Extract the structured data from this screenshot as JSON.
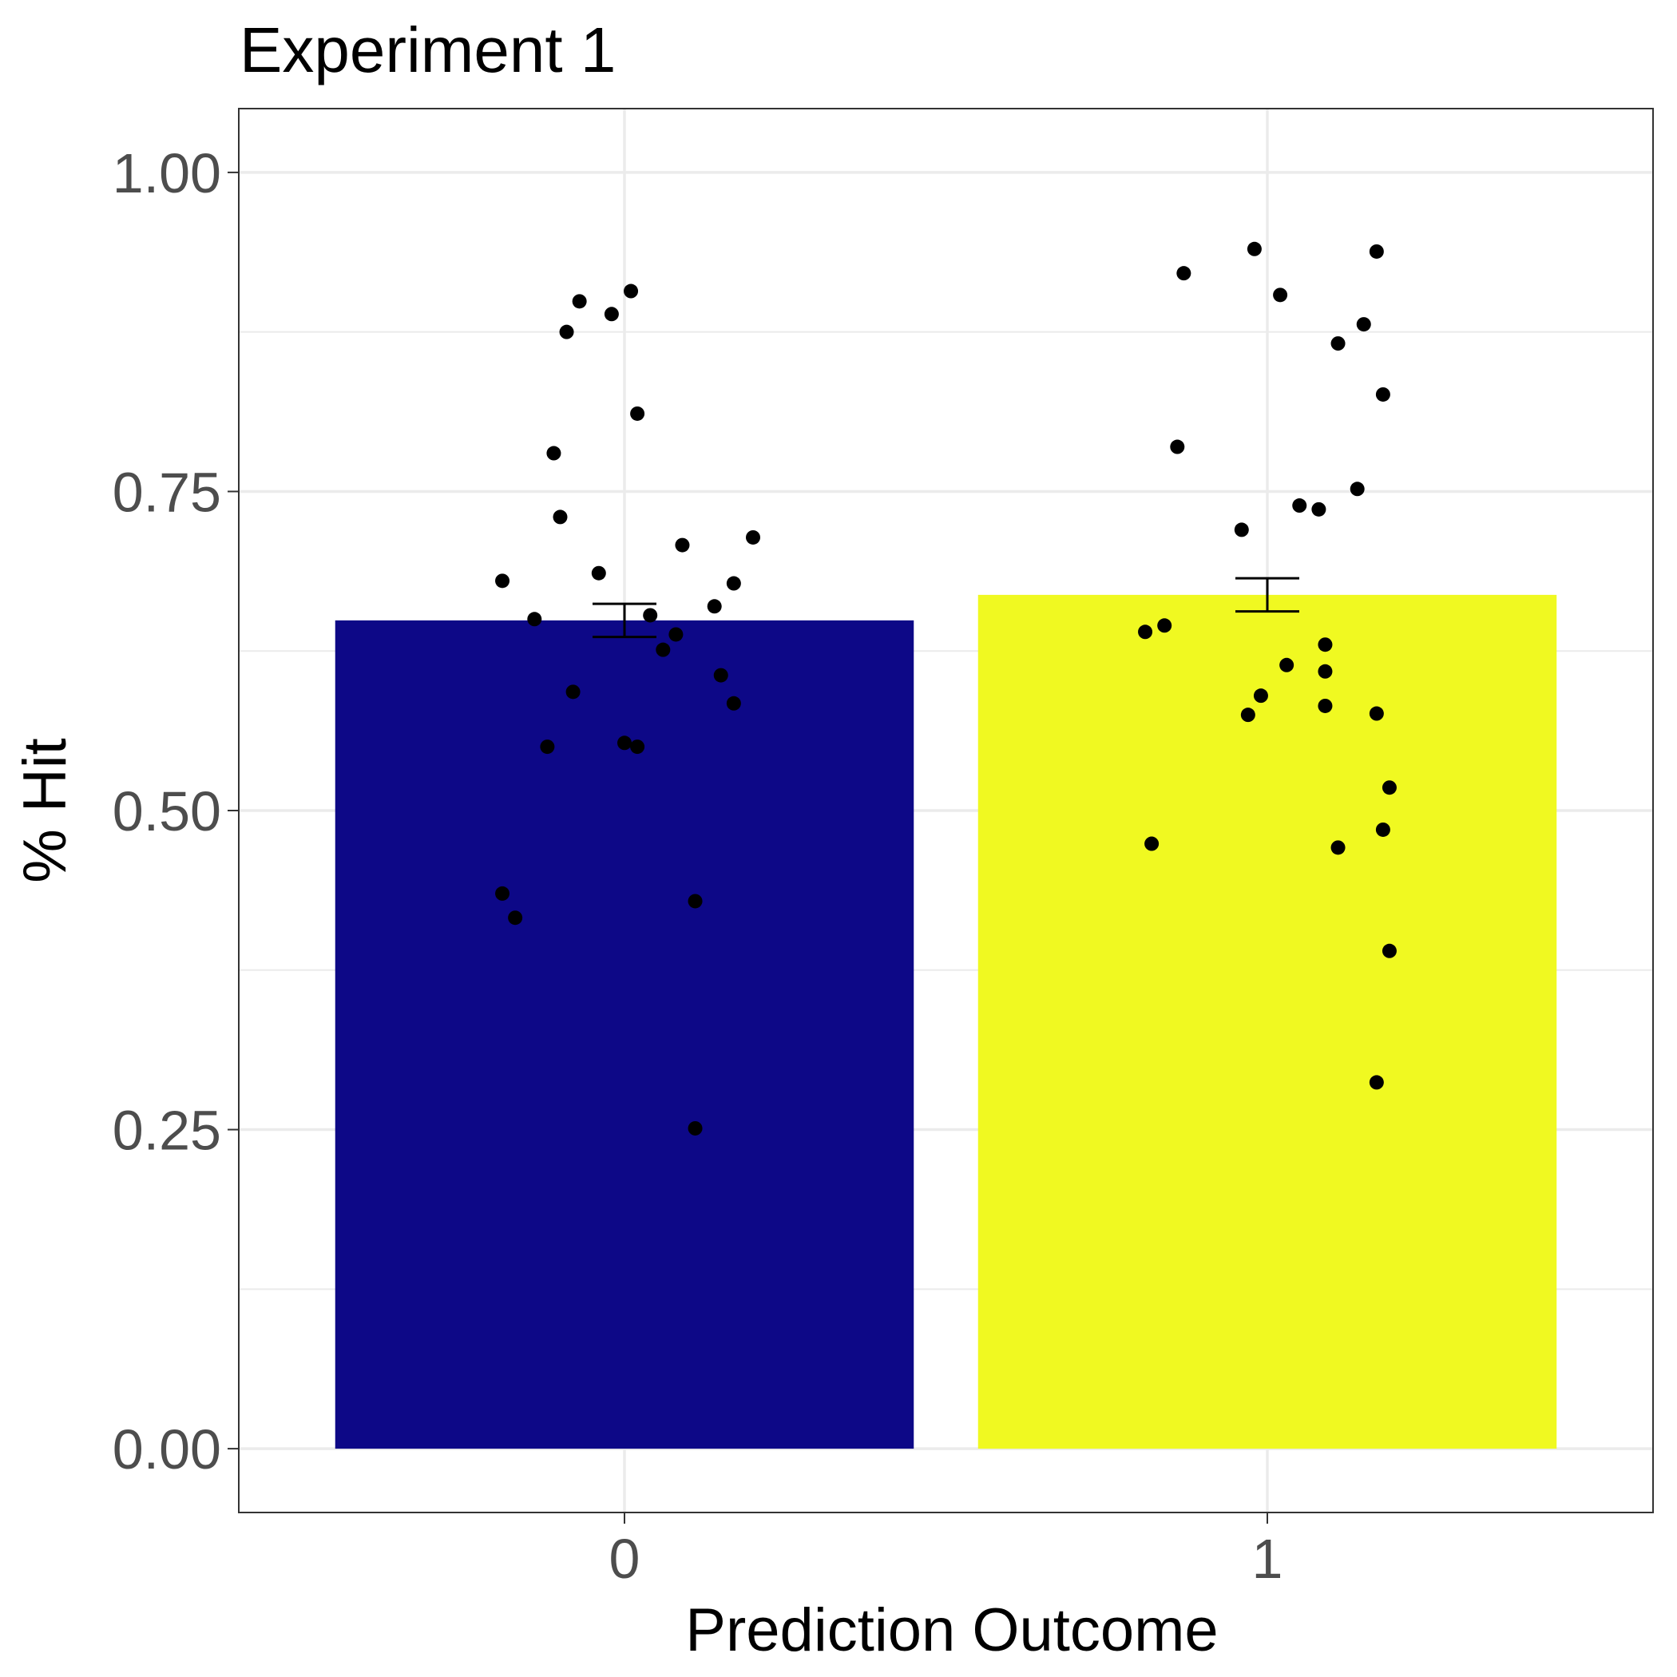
{
  "chart_data": {
    "type": "bar",
    "title": "Experiment 1",
    "xlabel": "Prediction Outcome",
    "ylabel": "% Hit",
    "categories": [
      "0",
      "1"
    ],
    "values": [
      0.649,
      0.669
    ],
    "error": [
      {
        "low": 0.636,
        "high": 0.662
      },
      {
        "low": 0.656,
        "high": 0.682
      }
    ],
    "ylim": [
      -0.05,
      1.05
    ],
    "xlim": [
      0.4,
      2.6
    ],
    "yticks": [
      0.0,
      0.25,
      0.5,
      0.75,
      1.0
    ],
    "ytick_labels": [
      "0.00",
      "0.25",
      "0.50",
      "0.75",
      "1.00"
    ],
    "grid": true,
    "legend": "none",
    "colors": {
      "0": "#0d0887",
      "1": "#f0f921",
      "points": "#000000",
      "grid": "#ebebeb"
    },
    "points": [
      {
        "x": 0.81,
        "y": 0.68
      },
      {
        "x": 0.86,
        "y": 0.65
      },
      {
        "x": 0.88,
        "y": 0.55
      },
      {
        "x": 0.89,
        "y": 0.78
      },
      {
        "x": 0.9,
        "y": 0.73
      },
      {
        "x": 0.91,
        "y": 0.875
      },
      {
        "x": 0.92,
        "y": 0.593
      },
      {
        "x": 0.93,
        "y": 0.899
      },
      {
        "x": 0.96,
        "y": 0.686
      },
      {
        "x": 0.98,
        "y": 0.889
      },
      {
        "x": 1.0,
        "y": 0.553
      },
      {
        "x": 1.01,
        "y": 0.907
      },
      {
        "x": 1.02,
        "y": 0.811
      },
      {
        "x": 1.02,
        "y": 0.55
      },
      {
        "x": 1.04,
        "y": 0.653
      },
      {
        "x": 1.06,
        "y": 0.626
      },
      {
        "x": 1.08,
        "y": 0.638
      },
      {
        "x": 1.09,
        "y": 0.708
      },
      {
        "x": 1.11,
        "y": 0.429
      },
      {
        "x": 1.11,
        "y": 0.251
      },
      {
        "x": 1.14,
        "y": 0.66
      },
      {
        "x": 1.15,
        "y": 0.606
      },
      {
        "x": 1.17,
        "y": 0.584
      },
      {
        "x": 1.17,
        "y": 0.678
      },
      {
        "x": 1.2,
        "y": 0.714
      },
      {
        "x": 0.81,
        "y": 0.435
      },
      {
        "x": 0.83,
        "y": 0.416
      },
      {
        "x": 1.81,
        "y": 0.64
      },
      {
        "x": 1.82,
        "y": 0.474
      },
      {
        "x": 1.84,
        "y": 0.645
      },
      {
        "x": 1.86,
        "y": 0.785
      },
      {
        "x": 1.87,
        "y": 0.921
      },
      {
        "x": 1.96,
        "y": 0.72
      },
      {
        "x": 1.97,
        "y": 0.575
      },
      {
        "x": 1.98,
        "y": 0.94
      },
      {
        "x": 1.99,
        "y": 0.59
      },
      {
        "x": 2.02,
        "y": 0.904
      },
      {
        "x": 2.03,
        "y": 0.614
      },
      {
        "x": 2.05,
        "y": 0.739
      },
      {
        "x": 2.08,
        "y": 0.736
      },
      {
        "x": 2.09,
        "y": 0.63
      },
      {
        "x": 2.09,
        "y": 0.609
      },
      {
        "x": 2.09,
        "y": 0.582
      },
      {
        "x": 2.11,
        "y": 0.471
      },
      {
        "x": 2.11,
        "y": 0.866
      },
      {
        "x": 2.14,
        "y": 0.752
      },
      {
        "x": 2.15,
        "y": 0.881
      },
      {
        "x": 2.17,
        "y": 0.938
      },
      {
        "x": 2.17,
        "y": 0.576
      },
      {
        "x": 2.17,
        "y": 0.287
      },
      {
        "x": 2.18,
        "y": 0.826
      },
      {
        "x": 2.18,
        "y": 0.485
      },
      {
        "x": 2.19,
        "y": 0.518
      },
      {
        "x": 2.19,
        "y": 0.39
      }
    ]
  }
}
